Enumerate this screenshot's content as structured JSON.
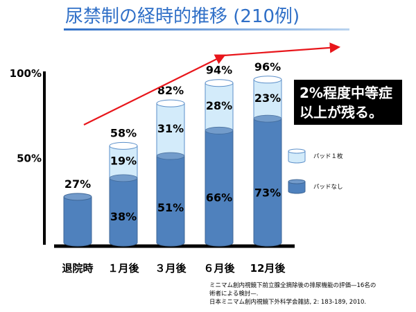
{
  "title": "尿禁制の経時的推移 (210例)",
  "note": {
    "lines": [
      "2%程度中等症",
      "以上が残る。"
    ]
  },
  "citation": {
    "lines": [
      "ミニマム創内視鏡下前立腺全摘除後の排尿機能の評価—16名の",
      "術者による検討—.",
      "日本ミニマム創内視鏡下外科学会雑誌, 2: 183-189, 2010."
    ]
  },
  "chart_data": {
    "type": "bar",
    "stacked": true,
    "categories": [
      "退院時",
      "１月後",
      "３月後",
      "６月後",
      "12月後"
    ],
    "series": [
      {
        "name": "パッドなし",
        "values": [
          27,
          38,
          51,
          66,
          73
        ],
        "color": "#4f81bd"
      },
      {
        "name": "パッド１枚",
        "values": [
          0,
          19,
          31,
          28,
          23
        ],
        "color": "#d3ebfa"
      }
    ],
    "totals": [
      27,
      58,
      82,
      94,
      96
    ],
    "labels": {
      "no_pad": [
        "",
        "38%",
        "51%",
        "66%",
        "73%"
      ],
      "one_pad": [
        "",
        "19%",
        "31%",
        "28%",
        "23%"
      ],
      "totals": [
        "27%",
        "58%",
        "82%",
        "94%",
        "96%"
      ]
    },
    "y_tick_labels": {
      "100": "100%",
      "50": "50%"
    },
    "ylim": [
      0,
      100
    ],
    "legend": [
      "パッド１枚",
      "パッドなし"
    ],
    "legend_position": "right",
    "trend_arrows": true
  }
}
